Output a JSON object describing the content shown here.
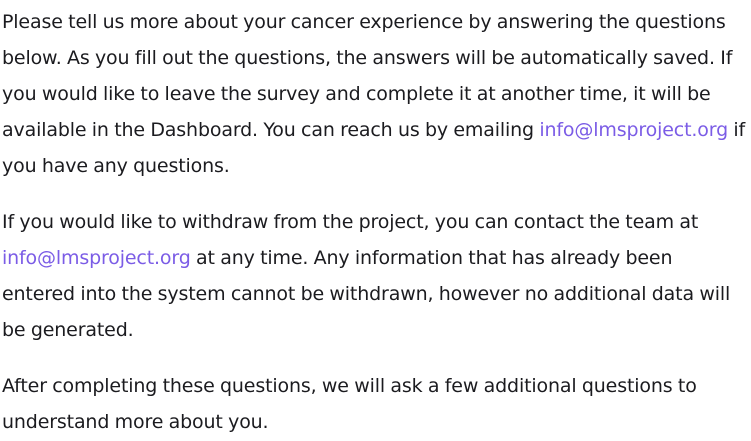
{
  "intro": {
    "text_before_email": "Please tell us more about your cancer experience by answering the questions below. As you fill out the questions, the answers will be automatically saved. If you would like to leave the survey and complete it at another time, it will be available in the Dashboard. You can reach us by emailing ",
    "email": "info@lmsproject.org",
    "text_after_email": " if you have any questions."
  },
  "withdraw": {
    "text_before_email": "If you would like to withdraw from the project, you can contact the team at ",
    "email": "info@lmsproject.org",
    "text_after_email": " at any time. Any information that has already been entered into the system cannot be withdrawn, however no additional data will be generated."
  },
  "closing": {
    "text": "After completing these questions, we will ask a few additional questions to understand more about you."
  },
  "colors": {
    "link": "#7b5ce6",
    "text": "#1b1b1f"
  }
}
